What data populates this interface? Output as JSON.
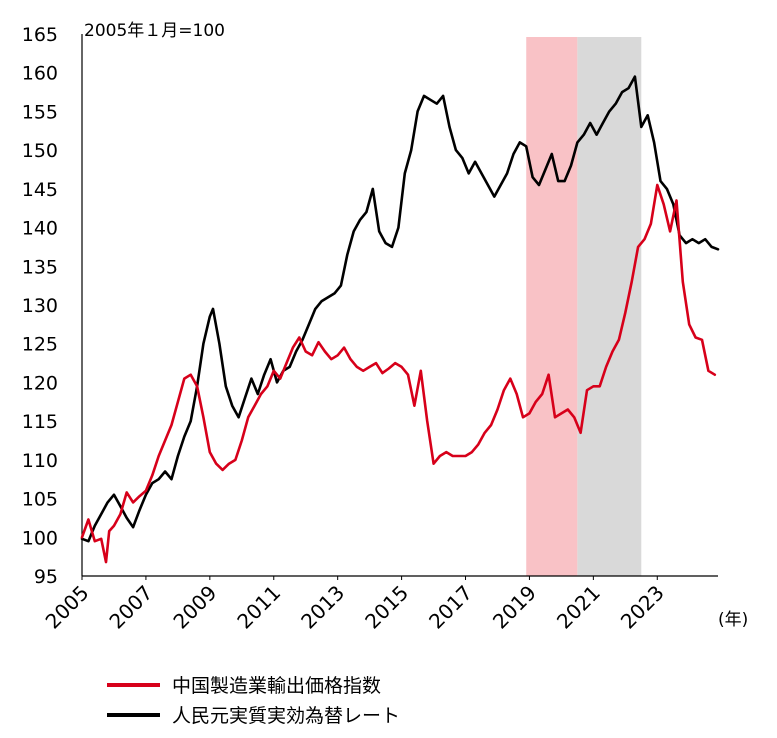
{
  "chart_data": {
    "type": "line",
    "unit_label": "2005年１月=100",
    "x_unit_label": "(年)",
    "ylim": [
      95,
      165
    ],
    "yticks": [
      95,
      100,
      105,
      110,
      115,
      120,
      125,
      130,
      135,
      140,
      145,
      150,
      155,
      160,
      165
    ],
    "xlim": [
      2005.0,
      2024.9
    ],
    "xticks": [
      "2005",
      "2007",
      "2009",
      "2011",
      "2013",
      "2015",
      "2017",
      "2019",
      "2021",
      "2023"
    ],
    "shaded_periods": [
      {
        "start": 2018.9,
        "end": 2020.5,
        "color": "#f9c2c6"
      },
      {
        "start": 2020.5,
        "end": 2022.5,
        "color": "#d9d9d9"
      }
    ],
    "series": [
      {
        "name": "中国製造業輸出価格指数",
        "color": "#d7001a",
        "x": [
          2005.0,
          2005.2,
          2005.4,
          2005.6,
          2005.75,
          2005.85,
          2006.0,
          2006.2,
          2006.4,
          2006.6,
          2006.8,
          2007.0,
          2007.2,
          2007.4,
          2007.6,
          2007.8,
          2008.0,
          2008.2,
          2008.4,
          2008.6,
          2008.8,
          2009.0,
          2009.2,
          2009.4,
          2009.6,
          2009.8,
          2010.0,
          2010.2,
          2010.4,
          2010.6,
          2010.8,
          2011.0,
          2011.2,
          2011.4,
          2011.6,
          2011.8,
          2012.0,
          2012.2,
          2012.4,
          2012.6,
          2012.8,
          2013.0,
          2013.2,
          2013.4,
          2013.6,
          2013.8,
          2014.0,
          2014.2,
          2014.4,
          2014.6,
          2014.8,
          2015.0,
          2015.2,
          2015.4,
          2015.6,
          2015.8,
          2016.0,
          2016.2,
          2016.4,
          2016.6,
          2016.8,
          2017.0,
          2017.2,
          2017.4,
          2017.6,
          2017.8,
          2018.0,
          2018.2,
          2018.4,
          2018.6,
          2018.8,
          2019.0,
          2019.2,
          2019.4,
          2019.6,
          2019.8,
          2020.0,
          2020.2,
          2020.4,
          2020.6,
          2020.8,
          2021.0,
          2021.2,
          2021.4,
          2021.6,
          2021.8,
          2022.0,
          2022.2,
          2022.4,
          2022.6,
          2022.8,
          2023.0,
          2023.2,
          2023.4,
          2023.6,
          2023.8,
          2024.0,
          2024.2,
          2024.4,
          2024.6,
          2024.8
        ],
        "values": [
          100.0,
          102.3,
          99.5,
          99.8,
          96.8,
          100.8,
          101.5,
          103.0,
          105.8,
          104.5,
          105.3,
          106.0,
          108.0,
          110.5,
          112.5,
          114.5,
          117.5,
          120.5,
          121.0,
          119.5,
          115.5,
          111.0,
          109.5,
          108.7,
          109.5,
          110.0,
          112.5,
          115.5,
          117.0,
          118.5,
          119.5,
          121.5,
          120.5,
          122.5,
          124.5,
          125.8,
          124.0,
          123.5,
          125.2,
          124.0,
          123.0,
          123.5,
          124.5,
          123.0,
          122.0,
          121.5,
          122.0,
          122.5,
          121.2,
          121.8,
          122.5,
          122.0,
          121.0,
          117.0,
          121.5,
          115.0,
          109.5,
          110.5,
          111.0,
          110.5,
          110.5,
          110.5,
          111.0,
          112.0,
          113.5,
          114.5,
          116.5,
          119.0,
          120.5,
          118.5,
          115.5,
          116.0,
          117.5,
          118.5,
          121.0,
          115.5,
          116.0,
          116.5,
          115.5,
          113.5,
          119.0,
          119.5,
          119.5,
          122.0,
          124.0,
          125.5,
          129.0,
          133.0,
          137.5,
          138.5,
          140.5,
          145.5,
          143.0,
          139.5,
          143.5,
          133.0,
          127.5,
          125.8,
          125.5,
          121.5,
          121.0
        ]
      },
      {
        "name": "人民元実質実効為替レート",
        "color": "#000000",
        "x": [
          2005.0,
          2005.2,
          2005.4,
          2005.6,
          2005.8,
          2006.0,
          2006.2,
          2006.4,
          2006.6,
          2006.8,
          2007.0,
          2007.2,
          2007.4,
          2007.6,
          2007.8,
          2008.0,
          2008.2,
          2008.4,
          2008.6,
          2008.8,
          2009.0,
          2009.1,
          2009.3,
          2009.5,
          2009.7,
          2009.9,
          2010.1,
          2010.3,
          2010.5,
          2010.7,
          2010.9,
          2011.1,
          2011.3,
          2011.5,
          2011.7,
          2011.9,
          2012.1,
          2012.3,
          2012.5,
          2012.7,
          2012.9,
          2013.1,
          2013.3,
          2013.5,
          2013.7,
          2013.9,
          2014.1,
          2014.3,
          2014.5,
          2014.7,
          2014.9,
          2015.1,
          2015.3,
          2015.5,
          2015.7,
          2015.9,
          2016.1,
          2016.3,
          2016.5,
          2016.7,
          2016.9,
          2017.1,
          2017.3,
          2017.5,
          2017.7,
          2017.9,
          2018.1,
          2018.3,
          2018.5,
          2018.7,
          2018.9,
          2019.1,
          2019.3,
          2019.5,
          2019.7,
          2019.9,
          2020.1,
          2020.3,
          2020.5,
          2020.7,
          2020.9,
          2021.1,
          2021.3,
          2021.5,
          2021.7,
          2021.9,
          2022.1,
          2022.3,
          2022.5,
          2022.7,
          2022.9,
          2023.1,
          2023.3,
          2023.5,
          2023.7,
          2023.9,
          2024.1,
          2024.3,
          2024.5,
          2024.7,
          2024.9
        ],
        "values": [
          99.8,
          99.5,
          101.5,
          103.0,
          104.5,
          105.5,
          104.0,
          102.5,
          101.3,
          103.5,
          105.5,
          107.0,
          107.5,
          108.5,
          107.5,
          110.5,
          113.0,
          115.0,
          119.5,
          125.0,
          128.5,
          129.5,
          125.0,
          119.5,
          117.0,
          115.5,
          118.0,
          120.5,
          118.5,
          121.0,
          123.0,
          120.0,
          121.5,
          122.0,
          124.0,
          125.5,
          127.5,
          129.5,
          130.5,
          131.0,
          131.5,
          132.5,
          136.5,
          139.5,
          141.0,
          142.0,
          145.0,
          139.5,
          138.0,
          137.5,
          140.0,
          147.0,
          150.0,
          155.0,
          157.0,
          156.5,
          156.0,
          157.0,
          153.0,
          150.0,
          149.0,
          147.0,
          148.5,
          147.0,
          145.5,
          144.0,
          145.5,
          147.0,
          149.5,
          151.0,
          150.5,
          146.5,
          145.5,
          147.5,
          149.5,
          146.0,
          146.0,
          148.0,
          151.0,
          152.0,
          153.5,
          152.0,
          153.5,
          155.0,
          156.0,
          157.5,
          158.0,
          159.5,
          153.0,
          154.5,
          151.0,
          146.0,
          145.0,
          143.0,
          139.0,
          138.0,
          138.5,
          138.0,
          138.5,
          137.5,
          137.2
        ]
      }
    ]
  }
}
